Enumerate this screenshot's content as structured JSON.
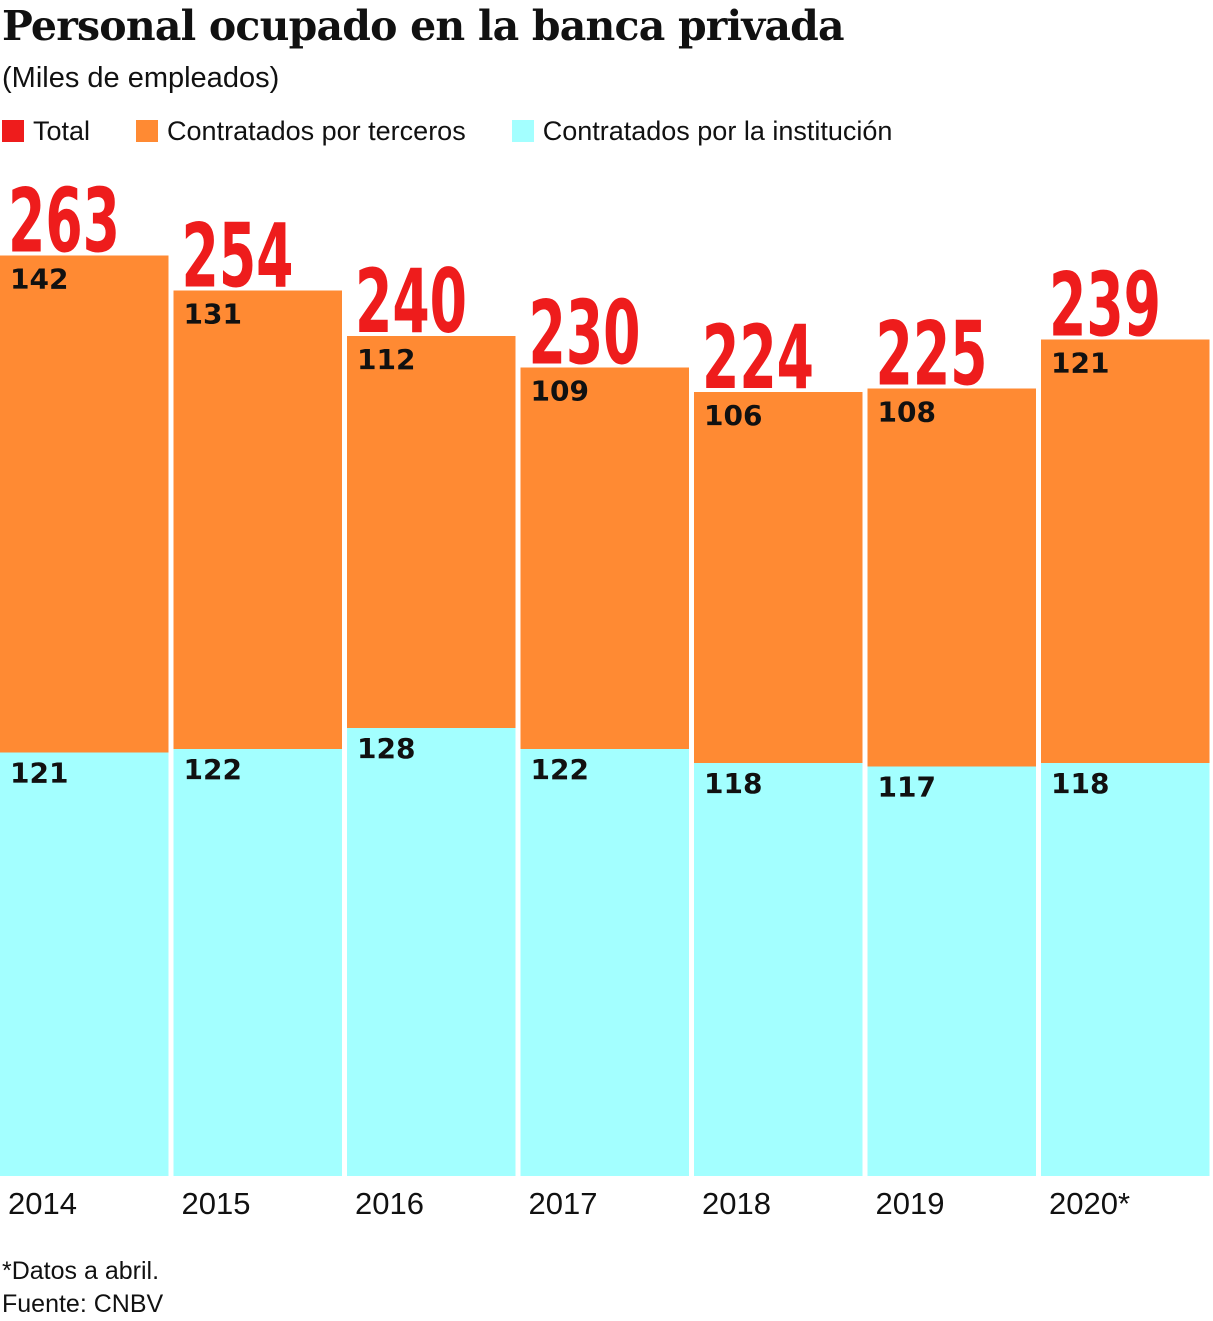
{
  "title": "Personal ocupado en la banca privada",
  "subtitle": "(Miles de empleados)",
  "legend": [
    {
      "label": "Total",
      "color": "#ee1c1c"
    },
    {
      "label": "Contratados por terceros",
      "color": "#ff8a33"
    },
    {
      "label": "Contratados por la institución",
      "color": "#a3ffff"
    }
  ],
  "chart_data": {
    "type": "bar",
    "stacked": true,
    "categories": [
      "2014",
      "2015",
      "2016",
      "2017",
      "2018",
      "2019",
      "2020*"
    ],
    "series": [
      {
        "name": "Contratados por la institución",
        "values": [
          121,
          122,
          128,
          122,
          118,
          117,
          118
        ],
        "color": "#a3ffff"
      },
      {
        "name": "Contratados por terceros",
        "values": [
          142,
          131,
          112,
          109,
          106,
          108,
          121
        ],
        "color": "#ff8a33"
      }
    ],
    "totals": {
      "name": "Total",
      "values": [
        263,
        254,
        240,
        230,
        224,
        225,
        239
      ],
      "color": "#ee1c1c"
    },
    "ylim": [
      0,
      263
    ],
    "grid": false,
    "legend_position": "top-left"
  },
  "footer": {
    "note": "*Datos a abril.",
    "source": "Fuente: CNBV"
  }
}
